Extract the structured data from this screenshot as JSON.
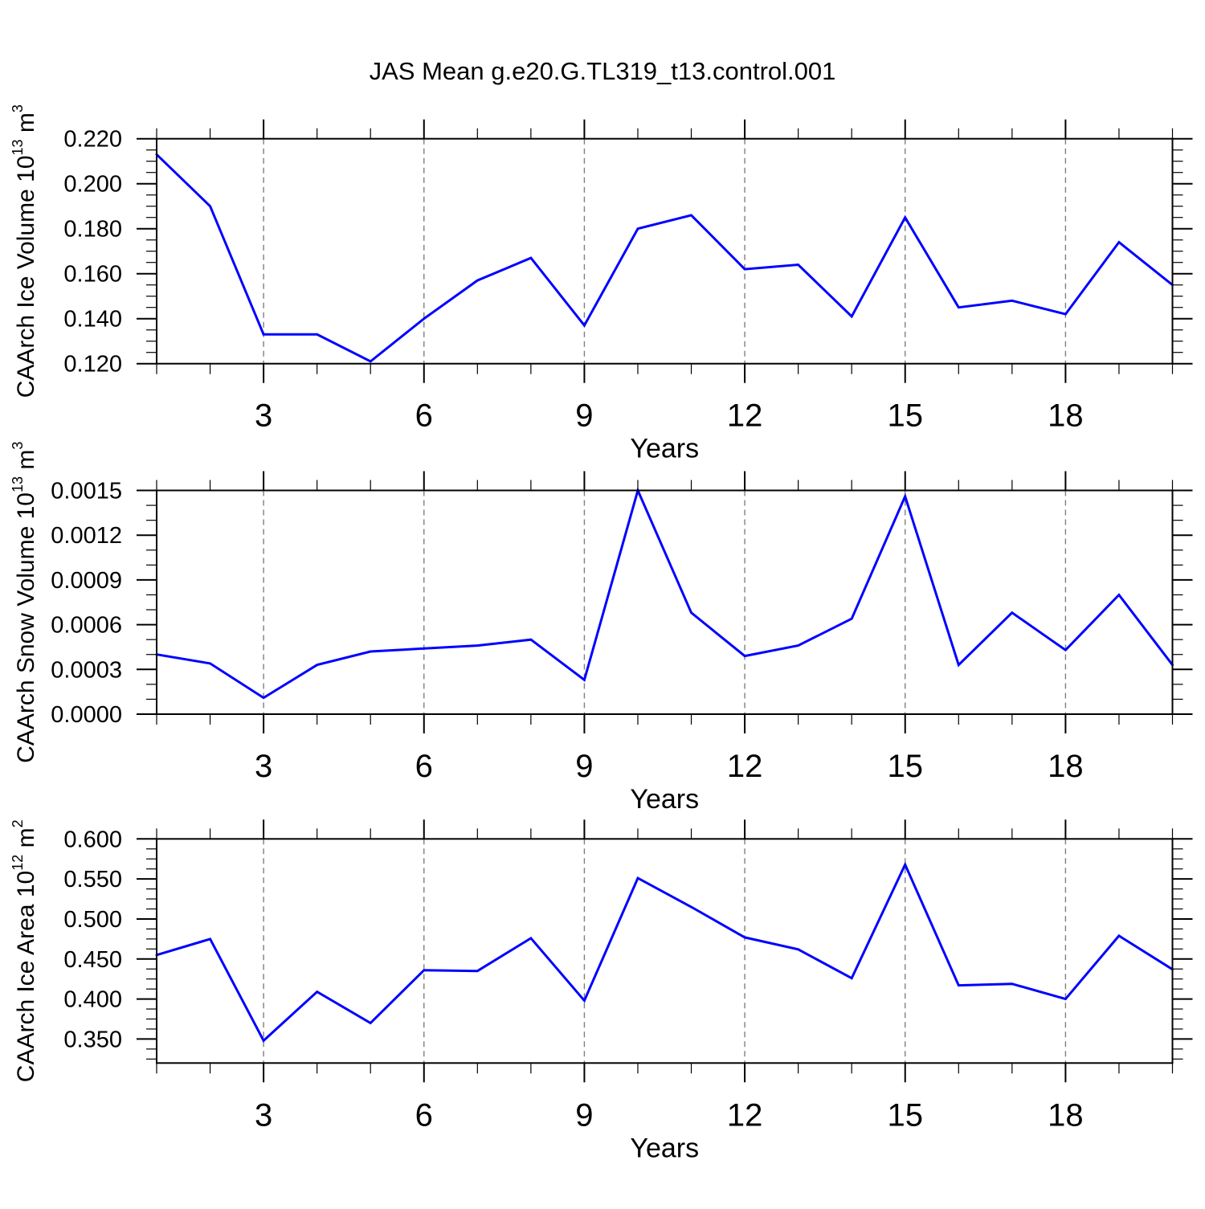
{
  "title": "JAS Mean g.e20.G.TL319_t13.control.001",
  "colors": {
    "line": "#0000ff",
    "grid": "#7f7f7f",
    "axis": "#000000",
    "background": "#ffffff"
  },
  "x_years": [
    1,
    2,
    3,
    4,
    5,
    6,
    7,
    8,
    9,
    10,
    11,
    12,
    13,
    14,
    15,
    16,
    17,
    18,
    19,
    20
  ],
  "x_axis": {
    "label": "Years",
    "range": [
      1,
      20
    ],
    "major_ticks": [
      3,
      6,
      9,
      12,
      15,
      18
    ],
    "major_labels": [
      "3",
      "6",
      "9",
      "12",
      "15",
      "18"
    ],
    "minor_ticks": [
      1,
      2,
      4,
      5,
      7,
      8,
      10,
      11,
      13,
      14,
      16,
      17,
      19,
      20
    ]
  },
  "chart_data": [
    {
      "type": "line",
      "name": "ice-volume",
      "ylabel": "CAArch Ice Volume 10^13 m^3",
      "ylabel_parts": [
        {
          "t": "CAArch Ice Volume 10"
        },
        {
          "t": "13",
          "sup": true
        },
        {
          "t": " m"
        },
        {
          "t": "3",
          "sup": true
        }
      ],
      "xlim": [
        1,
        20
      ],
      "ylim": [
        0.12,
        0.22
      ],
      "y_major_values": [
        0.12,
        0.14,
        0.16,
        0.18,
        0.2,
        0.22
      ],
      "y_major_labels": [
        "0.120",
        "0.140",
        "0.160",
        "0.180",
        "0.200",
        "0.220"
      ],
      "y_minor_step": 0.005,
      "grid": true,
      "legend": "none",
      "values": [
        0.213,
        0.19,
        0.133,
        0.133,
        0.121,
        0.14,
        0.157,
        0.167,
        0.137,
        0.18,
        0.186,
        0.162,
        0.164,
        0.141,
        0.185,
        0.145,
        0.148,
        0.142,
        0.174,
        0.155
      ]
    },
    {
      "type": "line",
      "name": "snow-volume",
      "ylabel": "CAArch Snow Volume 10^13 m^3",
      "ylabel_parts": [
        {
          "t": "CAArch Snow Volume 10"
        },
        {
          "t": "13",
          "sup": true
        },
        {
          "t": " m"
        },
        {
          "t": "3",
          "sup": true
        }
      ],
      "xlim": [
        1,
        20
      ],
      "ylim": [
        0.0,
        0.0015
      ],
      "y_major_values": [
        0.0,
        0.0003,
        0.0006,
        0.0009,
        0.0012,
        0.0015
      ],
      "y_major_labels": [
        "0.0000",
        "0.0003",
        "0.0006",
        "0.0009",
        "0.0012",
        "0.0015"
      ],
      "y_minor_step": 0.0001,
      "grid": true,
      "legend": "none",
      "values": [
        0.0004,
        0.00034,
        0.00011,
        0.00033,
        0.00042,
        0.00044,
        0.00046,
        0.0005,
        0.00023,
        0.0015,
        0.00068,
        0.00039,
        0.00046,
        0.00064,
        0.00146,
        0.00033,
        0.00068,
        0.00043,
        0.0008,
        0.00033
      ]
    },
    {
      "type": "line",
      "name": "ice-area",
      "ylabel": "CAArch Ice Area 10^12 m^2",
      "ylabel_parts": [
        {
          "t": "CAArch Ice Area 10"
        },
        {
          "t": "12",
          "sup": true
        },
        {
          "t": " m"
        },
        {
          "t": "2",
          "sup": true
        }
      ],
      "xlim": [
        1,
        20
      ],
      "ylim": [
        0.32,
        0.6
      ],
      "y_major_values": [
        0.35,
        0.4,
        0.45,
        0.5,
        0.55,
        0.6
      ],
      "y_major_labels": [
        "0.350",
        "0.400",
        "0.450",
        "0.500",
        "0.550",
        "0.600"
      ],
      "y_minor_step": 0.0125,
      "grid": true,
      "legend": "none",
      "values": [
        0.455,
        0.475,
        0.348,
        0.409,
        0.37,
        0.436,
        0.435,
        0.476,
        0.398,
        0.551,
        0.515,
        0.477,
        0.462,
        0.426,
        0.568,
        0.417,
        0.419,
        0.4,
        0.479,
        0.437
      ]
    }
  ]
}
